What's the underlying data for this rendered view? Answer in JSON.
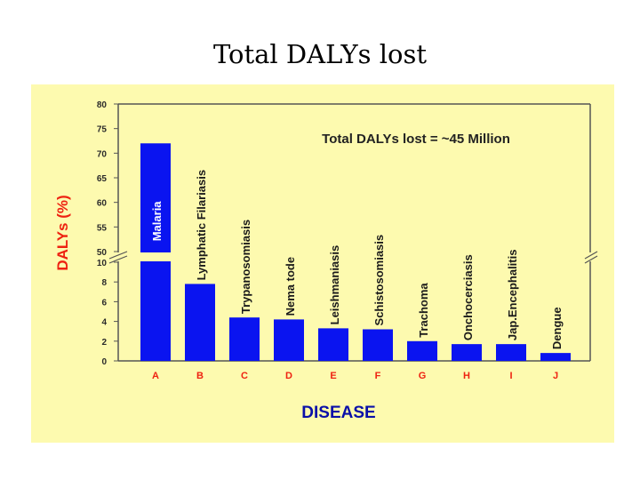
{
  "slide": {
    "title": "Total DALYs lost"
  },
  "chart_data": {
    "type": "bar",
    "ylabel": "DALYs (%)",
    "xlabel": "DISEASE",
    "annotation": "Total DALYs lost = ~45 Million",
    "categories": [
      "A",
      "B",
      "C",
      "D",
      "E",
      "F",
      "G",
      "H",
      "I",
      "J"
    ],
    "bar_labels": [
      "Malaria",
      "Lymphatic Filariasis",
      "Trypanosomiasis",
      "Nema tode",
      "Leishmaniasis",
      "Schistosomiasis",
      "Trachoma",
      "Onchocerciasis",
      "Jap.Encephalitis",
      "Dengue"
    ],
    "values": [
      72,
      7.8,
      4.4,
      4.2,
      3.3,
      3.2,
      2.0,
      1.7,
      1.7,
      0.8
    ],
    "scale_break": {
      "lower_range": [
        0,
        10
      ],
      "upper_range": [
        50,
        80
      ]
    },
    "lower_ticks": [
      "0",
      "2",
      "4",
      "6",
      "8",
      "10"
    ],
    "upper_ticks": [
      "50",
      "55",
      "60",
      "65",
      "70",
      "75",
      "80"
    ],
    "grid": false,
    "colors": {
      "bar": "#0a14f0",
      "bar_label": "#1a1a1a",
      "axis_text": "#0a10a8",
      "tick_text": "#2a2a2a",
      "category_text": "#ee2211",
      "ylabel": "#ee2211",
      "panel": "#fdfaaf"
    }
  }
}
